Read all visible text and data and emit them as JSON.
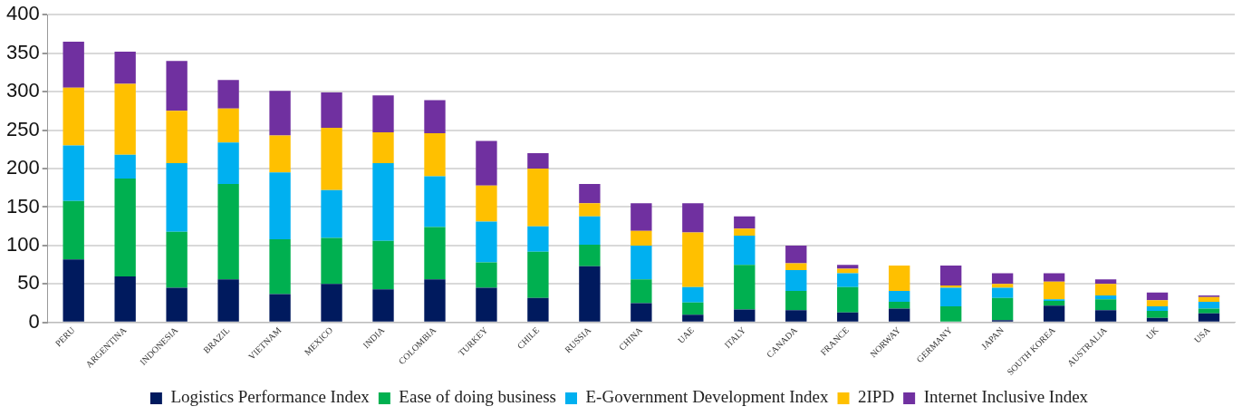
{
  "chart_data": {
    "type": "bar",
    "stacked": true,
    "categories": [
      "PERU",
      "ARGENTINA",
      "INDONESIA",
      "BRAZIL",
      "VIETNAM",
      "MEXICO",
      "INDIA",
      "COLOMBIA",
      "TURKEY",
      "CHILE",
      "RUSSIA",
      "CHINA",
      "UAE",
      "ITALY",
      "CANADA",
      "FRANCE",
      "NORWAY",
      "GERMANY",
      "JAPAN",
      "SOUTH KOREA",
      "AUSTRALIA",
      "UK",
      "USA"
    ],
    "series": [
      {
        "name": "Logistics Performance Index",
        "color": "#001a5e",
        "values": [
          82,
          60,
          45,
          56,
          37,
          50,
          43,
          56,
          45,
          32,
          73,
          25,
          10,
          17,
          16,
          13,
          18,
          null,
          3,
          22,
          16,
          6,
          12
        ]
      },
      {
        "name": "Ease of doing business",
        "color": "#00b050",
        "values": [
          76,
          127,
          73,
          124,
          71,
          60,
          63,
          68,
          33,
          60,
          28,
          31,
          16,
          58,
          25,
          33,
          9,
          21,
          29,
          6,
          14,
          9,
          6
        ]
      },
      {
        "name": "E-Government Development Index",
        "color": "#00b0f0",
        "values": [
          72,
          31,
          89,
          54,
          87,
          62,
          101,
          66,
          53,
          33,
          37,
          44,
          20,
          38,
          27,
          18,
          14,
          24,
          13,
          2,
          5,
          6,
          9
        ]
      },
      {
        "name": "2IPD",
        "color": "#ffc000",
        "values": [
          75,
          92,
          68,
          44,
          48,
          81,
          40,
          56,
          47,
          75,
          17,
          19,
          71,
          9,
          9,
          6,
          33,
          3,
          5,
          23,
          15,
          8,
          6
        ]
      },
      {
        "name": "Internet Inclusive Index",
        "color": "#7030a0",
        "values": [
          60,
          42,
          65,
          37,
          58,
          46,
          48,
          43,
          58,
          20,
          25,
          36,
          38,
          16,
          23,
          5,
          0,
          26,
          14,
          11,
          6,
          10,
          2
        ]
      }
    ],
    "ylim": [
      0,
      400
    ],
    "yticks": [
      0,
      50,
      100,
      150,
      200,
      250,
      300,
      350,
      400
    ],
    "grid": "y",
    "legend": "bottom"
  }
}
